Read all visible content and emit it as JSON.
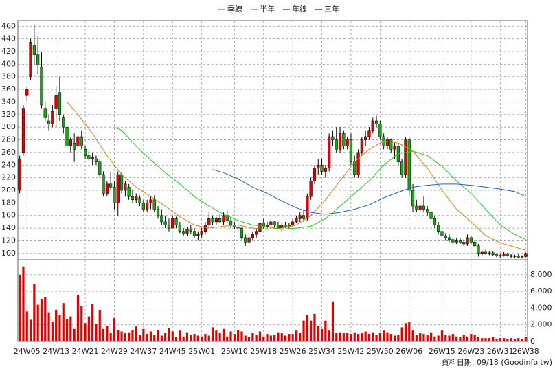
{
  "chart_data": {
    "type": "candlestick",
    "legend": "top",
    "grid": true,
    "source": "資料日期: 09/18 (Goodinfo.tw)",
    "up_color": "#e00000",
    "down_color": "#1aa81a",
    "volume_color": "#e00000",
    "categories": [
      null,
      null,
      "24W05",
      null,
      null,
      null,
      null,
      null,
      null,
      null,
      "24W13",
      null,
      null,
      null,
      null,
      null,
      null,
      null,
      "24W21",
      null,
      null,
      null,
      null,
      null,
      null,
      null,
      "24W29",
      null,
      null,
      null,
      null,
      null,
      null,
      null,
      "24W37",
      null,
      null,
      null,
      null,
      null,
      null,
      null,
      "24W45",
      null,
      null,
      null,
      null,
      null,
      null,
      null,
      "25W01",
      null,
      null,
      null,
      null,
      null,
      null,
      null,
      null,
      "25W10",
      null,
      null,
      null,
      null,
      null,
      null,
      null,
      "25W18",
      null,
      null,
      null,
      null,
      null,
      null,
      null,
      "25W26",
      null,
      null,
      null,
      null,
      null,
      null,
      null,
      "25W34",
      null,
      null,
      null,
      null,
      null,
      null,
      null,
      "25W42",
      null,
      null,
      null,
      null,
      null,
      null,
      null,
      "25W50",
      null,
      null,
      null,
      null,
      null,
      null,
      null,
      "26W06",
      null,
      null,
      null,
      null,
      null,
      null,
      null,
      null,
      "26W15",
      null,
      null,
      null,
      null,
      null,
      null,
      null,
      "26W23",
      null,
      null,
      null,
      null,
      null,
      null,
      null,
      "26W31",
      null,
      null,
      null,
      null,
      null,
      null,
      "26W38"
    ],
    "ohlc": [
      [
        200,
        255,
        195,
        250
      ],
      [
        260,
        335,
        255,
        330
      ],
      [
        350,
        365,
        340,
        360
      ],
      [
        380,
        440,
        375,
        435
      ],
      [
        430,
        462,
        400,
        415
      ],
      [
        415,
        445,
        385,
        400
      ],
      [
        395,
        420,
        330,
        335
      ],
      [
        330,
        340,
        310,
        315
      ],
      [
        310,
        320,
        295,
        305
      ],
      [
        305,
        335,
        300,
        325
      ],
      [
        330,
        365,
        300,
        350
      ],
      [
        355,
        380,
        310,
        320
      ],
      [
        315,
        320,
        290,
        300
      ],
      [
        300,
        305,
        265,
        270
      ],
      [
        270,
        285,
        260,
        280
      ],
      [
        275,
        290,
        245,
        265
      ],
      [
        270,
        290,
        265,
        285
      ],
      [
        285,
        295,
        265,
        270
      ],
      [
        265,
        270,
        250,
        255
      ],
      [
        255,
        265,
        245,
        250
      ],
      [
        250,
        260,
        240,
        252
      ],
      [
        250,
        255,
        240,
        245
      ],
      [
        245,
        250,
        220,
        225
      ],
      [
        225,
        230,
        190,
        195
      ],
      [
        195,
        215,
        190,
        210
      ],
      [
        210,
        230,
        200,
        205
      ],
      [
        205,
        215,
        170,
        180
      ],
      [
        180,
        230,
        160,
        225
      ],
      [
        225,
        228,
        195,
        200
      ],
      [
        200,
        215,
        190,
        210
      ],
      [
        205,
        210,
        185,
        190
      ],
      [
        190,
        200,
        180,
        185
      ],
      [
        185,
        195,
        180,
        190
      ],
      [
        188,
        192,
        175,
        180
      ],
      [
        180,
        185,
        165,
        170
      ],
      [
        170,
        185,
        165,
        180
      ],
      [
        180,
        190,
        170,
        185
      ],
      [
        185,
        192,
        165,
        170
      ],
      [
        170,
        175,
        155,
        160
      ],
      [
        160,
        170,
        145,
        150
      ],
      [
        150,
        160,
        140,
        145
      ],
      [
        145,
        155,
        135,
        140
      ],
      [
        140,
        160,
        140,
        155
      ],
      [
        155,
        158,
        140,
        145
      ],
      [
        145,
        150,
        132,
        135
      ],
      [
        135,
        140,
        128,
        132
      ],
      [
        132,
        142,
        128,
        138
      ],
      [
        138,
        145,
        130,
        135
      ],
      [
        135,
        140,
        125,
        128
      ],
      [
        128,
        135,
        120,
        130
      ],
      [
        130,
        140,
        125,
        135
      ],
      [
        135,
        150,
        130,
        145
      ],
      [
        145,
        165,
        140,
        155
      ],
      [
        155,
        160,
        145,
        150
      ],
      [
        150,
        158,
        145,
        155
      ],
      [
        155,
        162,
        148,
        150
      ],
      [
        150,
        165,
        145,
        160
      ],
      [
        160,
        168,
        148,
        152
      ],
      [
        152,
        158,
        140,
        145
      ],
      [
        145,
        150,
        138,
        142
      ],
      [
        142,
        148,
        135,
        140
      ],
      [
        140,
        142,
        122,
        125
      ],
      [
        125,
        130,
        112,
        118
      ],
      [
        118,
        128,
        115,
        125
      ],
      [
        125,
        135,
        120,
        130
      ],
      [
        130,
        140,
        125,
        135
      ],
      [
        135,
        150,
        132,
        148
      ],
      [
        148,
        155,
        138,
        142
      ],
      [
        142,
        150,
        138,
        145
      ],
      [
        145,
        155,
        140,
        150
      ],
      [
        150,
        152,
        140,
        145
      ],
      [
        145,
        150,
        138,
        140
      ],
      [
        140,
        148,
        135,
        145
      ],
      [
        145,
        150,
        140,
        142
      ],
      [
        142,
        148,
        138,
        145
      ],
      [
        145,
        155,
        142,
        150
      ],
      [
        150,
        160,
        148,
        155
      ],
      [
        155,
        165,
        150,
        160
      ],
      [
        160,
        170,
        150,
        155
      ],
      [
        155,
        195,
        152,
        190
      ],
      [
        190,
        220,
        185,
        215
      ],
      [
        215,
        240,
        210,
        235
      ],
      [
        235,
        250,
        225,
        240
      ],
      [
        240,
        250,
        225,
        230
      ],
      [
        230,
        240,
        220,
        235
      ],
      [
        235,
        290,
        230,
        285
      ],
      [
        285,
        295,
        270,
        280
      ],
      [
        280,
        300,
        260,
        265
      ],
      [
        265,
        300,
        260,
        290
      ],
      [
        290,
        295,
        265,
        270
      ],
      [
        270,
        285,
        265,
        280
      ],
      [
        280,
        290,
        240,
        245
      ],
      [
        245,
        255,
        220,
        225
      ],
      [
        225,
        265,
        220,
        260
      ],
      [
        260,
        285,
        255,
        280
      ],
      [
        280,
        295,
        270,
        285
      ],
      [
        285,
        300,
        280,
        295
      ],
      [
        295,
        315,
        290,
        310
      ],
      [
        310,
        318,
        300,
        305
      ],
      [
        305,
        310,
        280,
        285
      ],
      [
        285,
        290,
        265,
        270
      ],
      [
        270,
        285,
        265,
        280
      ],
      [
        280,
        282,
        260,
        265
      ],
      [
        265,
        275,
        250,
        270
      ],
      [
        270,
        275,
        240,
        245
      ],
      [
        245,
        250,
        220,
        225
      ],
      [
        225,
        285,
        220,
        280
      ],
      [
        280,
        285,
        190,
        200
      ],
      [
        200,
        210,
        165,
        175
      ],
      [
        175,
        185,
        165,
        170
      ],
      [
        170,
        180,
        165,
        175
      ],
      [
        175,
        190,
        165,
        170
      ],
      [
        170,
        175,
        160,
        165
      ],
      [
        165,
        170,
        150,
        155
      ],
      [
        155,
        160,
        140,
        145
      ],
      [
        145,
        150,
        130,
        135
      ],
      [
        135,
        140,
        125,
        128
      ],
      [
        128,
        132,
        120,
        125
      ],
      [
        125,
        130,
        118,
        122
      ],
      [
        122,
        126,
        115,
        118
      ],
      [
        118,
        125,
        115,
        120
      ],
      [
        120,
        125,
        115,
        118
      ],
      [
        118,
        122,
        112,
        115
      ],
      [
        115,
        130,
        112,
        125
      ],
      [
        125,
        128,
        115,
        118
      ],
      [
        118,
        120,
        110,
        112
      ],
      [
        112,
        115,
        95,
        100
      ],
      [
        100,
        105,
        96,
        102
      ],
      [
        102,
        106,
        98,
        100
      ],
      [
        100,
        104,
        97,
        101
      ],
      [
        101,
        103,
        96,
        98
      ],
      [
        98,
        100,
        94,
        96
      ],
      [
        96,
        100,
        93,
        97
      ],
      [
        97,
        102,
        95,
        99
      ],
      [
        99,
        101,
        95,
        97
      ],
      [
        97,
        99,
        93,
        95
      ],
      [
        95,
        98,
        92,
        96
      ],
      [
        96,
        99,
        93,
        94
      ],
      [
        94,
        97,
        92,
        95
      ],
      [
        95,
        101,
        94,
        100
      ]
    ],
    "volume": [
      8000,
      9000,
      3600,
      2600,
      6900,
      4400,
      5100,
      5300,
      3500,
      2400,
      3800,
      3200,
      4600,
      2700,
      3000,
      1500,
      5600,
      4200,
      2200,
      3000,
      4500,
      2100,
      3800,
      1500,
      1900,
      1000,
      2800,
      1400,
      1200,
      1000,
      1100,
      1400,
      1800,
      800,
      1500,
      900,
      1200,
      800,
      1400,
      700,
      1000,
      1600,
      1200,
      500,
      1300,
      600,
      1100,
      800,
      900,
      700,
      600,
      900,
      700,
      1700,
      1300,
      1000,
      1500,
      600,
      1200,
      900,
      1400,
      1200,
      700,
      500,
      1000,
      800,
      1200,
      600,
      900,
      700,
      800,
      1100,
      1000,
      700,
      900,
      900,
      1300,
      1000,
      2500,
      3200,
      2500,
      3300,
      1900,
      1500,
      2500,
      1300,
      4800,
      1000,
      1100,
      1000,
      1000,
      900,
      1100,
      900,
      1000,
      1200,
      900,
      1100,
      800,
      1000,
      1300,
      1100,
      900,
      700,
      800,
      1700,
      2200,
      2300,
      1300,
      800,
      1000,
      900,
      800,
      1100,
      600,
      700,
      1300,
      800,
      700,
      900,
      600,
      500,
      800,
      600,
      900,
      800,
      500,
      400,
      400,
      400,
      500,
      300,
      400,
      400,
      300,
      400,
      300,
      400,
      300,
      500
    ],
    "series": [
      {
        "name": "季線",
        "color": "#e07b1a",
        "x": [
          13,
          16,
          20,
          24,
          28,
          32,
          36,
          40,
          44,
          48,
          52,
          56,
          60,
          64,
          68,
          72,
          76,
          80,
          84,
          88,
          92,
          96,
          100,
          104,
          108,
          112,
          116,
          120,
          124,
          128,
          132,
          136,
          139
        ],
        "values": [
          340,
          320,
          290,
          255,
          225,
          205,
          190,
          175,
          158,
          145,
          140,
          143,
          145,
          140,
          138,
          140,
          145,
          160,
          185,
          215,
          245,
          265,
          278,
          275,
          262,
          235,
          200,
          170,
          150,
          128,
          117,
          110,
          105
        ]
      },
      {
        "name": "半年",
        "color": "#22cc22",
        "x": [
          26,
          28,
          32,
          36,
          40,
          44,
          48,
          52,
          56,
          60,
          64,
          68,
          72,
          76,
          80,
          84,
          88,
          92,
          96,
          100,
          104,
          108,
          112,
          116,
          120,
          124,
          128,
          132,
          136,
          139
        ],
        "values": [
          300,
          295,
          270,
          248,
          228,
          210,
          190,
          175,
          162,
          152,
          145,
          142,
          138,
          140,
          143,
          155,
          175,
          195,
          215,
          240,
          258,
          262,
          255,
          238,
          215,
          195,
          170,
          145,
          130,
          122
        ]
      },
      {
        "name": "年線",
        "color": "#1f5fbf",
        "x": [
          53,
          56,
          60,
          64,
          68,
          72,
          76,
          80,
          84,
          88,
          92,
          96,
          100,
          104,
          108,
          112,
          116,
          120,
          124,
          128,
          132,
          136,
          139
        ],
        "values": [
          233,
          228,
          218,
          205,
          195,
          183,
          172,
          165,
          162,
          165,
          170,
          177,
          188,
          197,
          205,
          208,
          210,
          210,
          208,
          205,
          202,
          198,
          190
        ]
      },
      {
        "name": "三年",
        "color": "#e00000",
        "x": [],
        "values": []
      }
    ],
    "ylim": [
      90,
      469
    ],
    "yticks": [
      100,
      120,
      140,
      160,
      180,
      200,
      220,
      240,
      260,
      280,
      300,
      320,
      340,
      360,
      380,
      400,
      420,
      440,
      460
    ],
    "y2lim": [
      0,
      9800
    ],
    "y2ticks": [
      0,
      {
        "value": 2000,
        "label": "2,000"
      },
      {
        "value": 4000,
        "label": "4,000"
      },
      {
        "value": 6000,
        "label": "6,000"
      },
      {
        "value": 8000,
        "label": "8,000"
      }
    ]
  }
}
